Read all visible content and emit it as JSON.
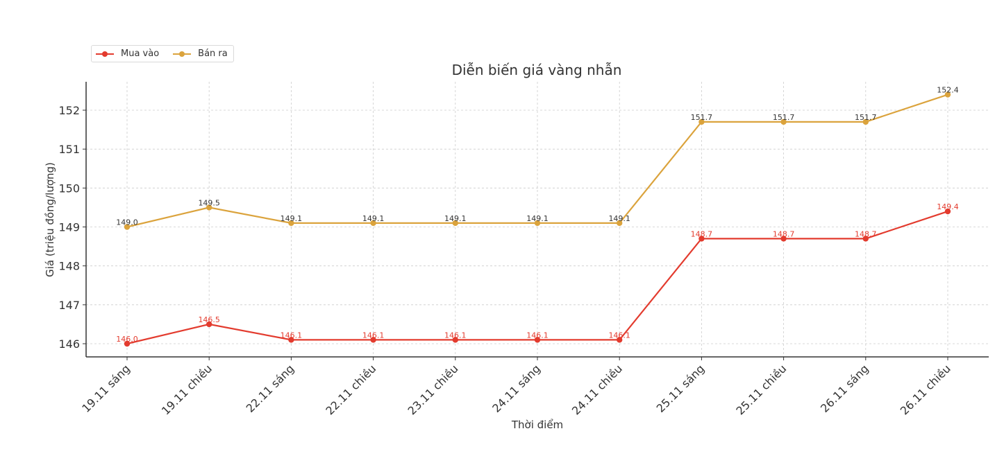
{
  "chart_data": {
    "type": "line",
    "title": "Diễn biến giá vàng nhẫn",
    "xlabel": "Thời điểm",
    "ylabel": "Giá (triệu đồng/lượng)",
    "categories": [
      "19.11 sáng",
      "19.11 chiều",
      "22.11 sáng",
      "22.11 chiều",
      "23.11 chiều",
      "24.11 sáng",
      "24.11 chiều",
      "25.11 sáng",
      "25.11 chiều",
      "26.11 sáng",
      "26.11 chiều"
    ],
    "series": [
      {
        "name": "Mua vào",
        "color": "#e33b2e",
        "label_color": "#e33b2e",
        "values": [
          146.0,
          146.5,
          146.1,
          146.1,
          146.1,
          146.1,
          146.1,
          148.7,
          148.7,
          148.7,
          149.4
        ]
      },
      {
        "name": "Bán ra",
        "color": "#dba33c",
        "label_color": "#333333",
        "values": [
          149.0,
          149.5,
          149.1,
          149.1,
          149.1,
          149.1,
          149.1,
          151.7,
          151.7,
          151.7,
          152.4
        ]
      }
    ],
    "yticks": [
      146,
      147,
      148,
      149,
      150,
      151,
      152
    ],
    "ylim": [
      145.66,
      152.72
    ],
    "grid": true,
    "legend_position": "upper left (above plot)"
  },
  "legend": {
    "items": [
      {
        "label": "Mua vào",
        "color": "#e33b2e"
      },
      {
        "label": "Bán ra",
        "color": "#dba33c"
      }
    ]
  }
}
